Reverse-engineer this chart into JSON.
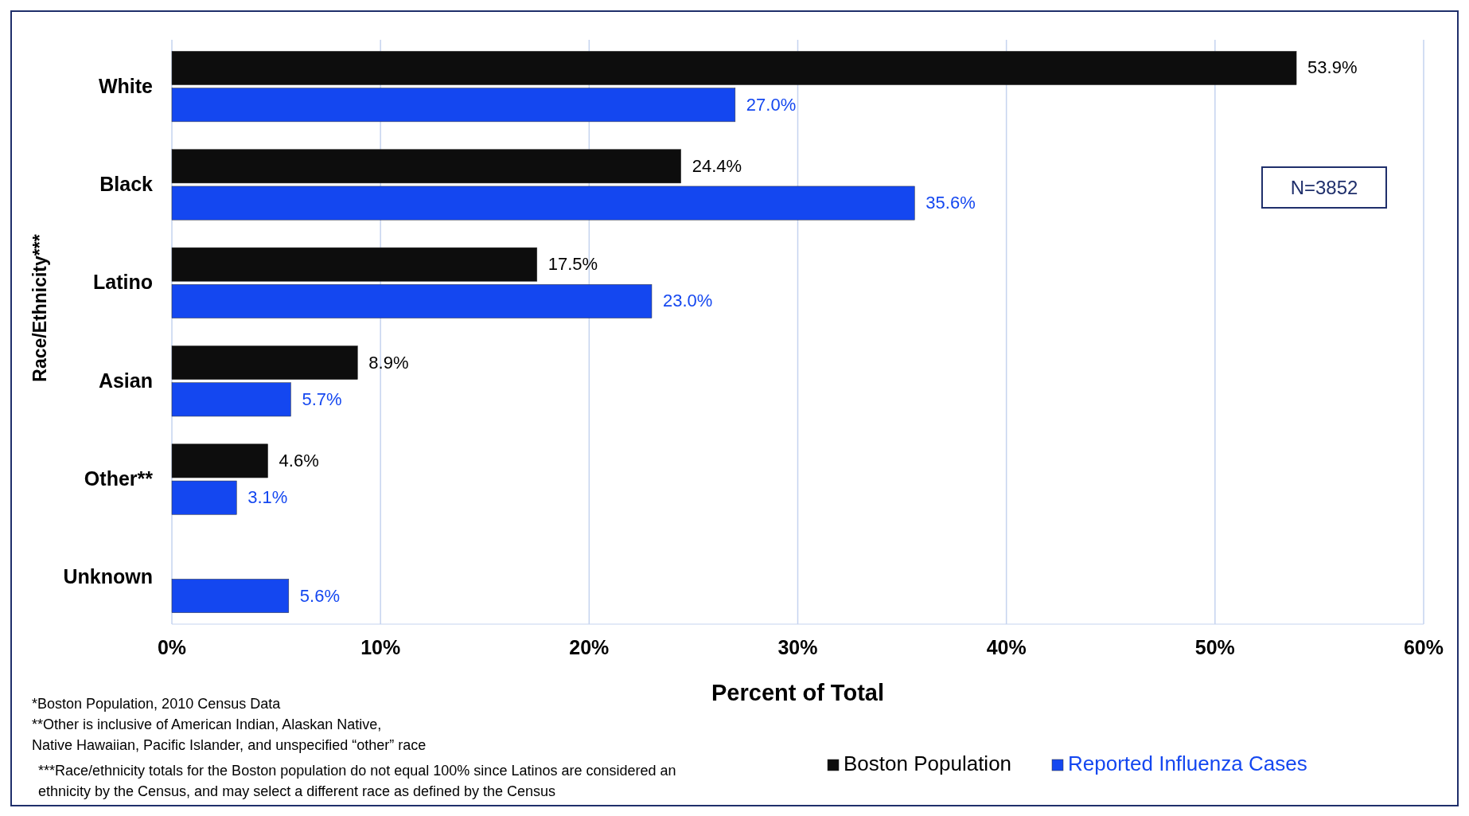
{
  "chart_data": {
    "type": "bar",
    "orientation": "horizontal",
    "xlabel": "Percent of Total",
    "ylabel": "Race/Ethnicity***",
    "categories": [
      "White",
      "Black",
      "Latino",
      "Asian",
      "Other**",
      "Unknown"
    ],
    "series": [
      {
        "name": "Boston Population",
        "color": "#0d0d0d",
        "values": [
          53.9,
          24.4,
          17.5,
          8.9,
          4.6,
          null
        ],
        "value_labels": [
          "53.9%",
          "24.4%",
          "17.5%",
          "8.9%",
          "4.6%",
          null
        ]
      },
      {
        "name": "Reported Influenza Cases",
        "color": "#1447f0",
        "values": [
          27.0,
          35.6,
          23.0,
          5.7,
          3.1,
          5.6
        ],
        "value_labels": [
          "27.0%",
          "35.6%",
          "23.0%",
          "5.7%",
          "3.1%",
          "5.6%"
        ]
      }
    ],
    "xlim": [
      0,
      60
    ],
    "xticks": [
      {
        "value": 0,
        "label": "0%"
      },
      {
        "value": 10,
        "label": "10%"
      },
      {
        "value": 20,
        "label": "20%"
      },
      {
        "value": 30,
        "label": "30%"
      },
      {
        "value": 40,
        "label": "40%"
      },
      {
        "value": 50,
        "label": "50%"
      },
      {
        "value": 60,
        "label": "60%"
      }
    ],
    "grid": "x",
    "legend": "bottom right",
    "annotations": [
      "N=3852",
      "*Boston Population, 2010 Census Data",
      "**Other is inclusive of American Indian, Alaskan Native,",
      "Native Hawaiian, Pacific Islander, and unspecified “other” race",
      "***Race/ethnicity totals for the Boston population do not equal 100% since Latinos are considered an",
      "ethnicity by the Census, and may select a different race as defined by the Census"
    ]
  }
}
